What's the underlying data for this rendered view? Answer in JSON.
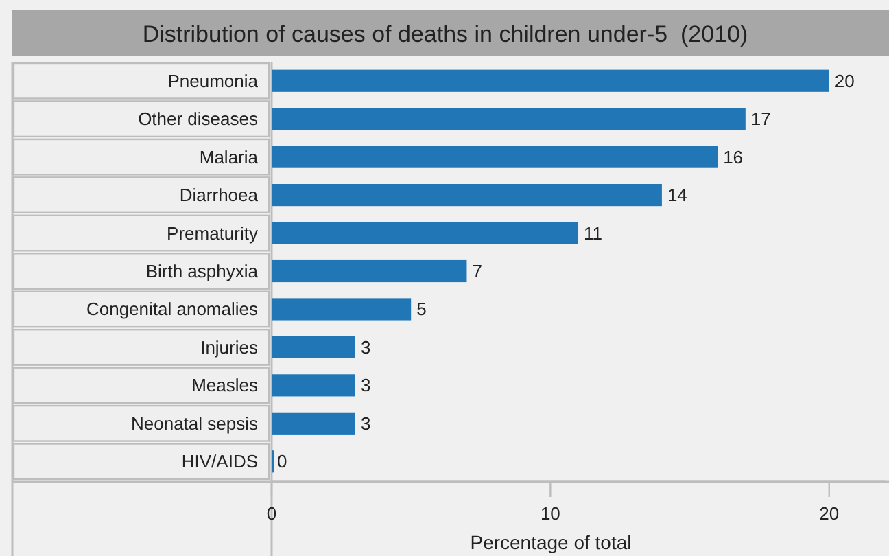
{
  "chart_data": {
    "type": "bar",
    "orientation": "horizontal",
    "title": "Distribution of causes of deaths in children under-5  (2010)",
    "xlabel": "Percentage of total",
    "categories": [
      "Pneumonia",
      "Other diseases",
      "Malaria",
      "Diarrhoea",
      "Prematurity",
      "Birth asphyxia",
      "Congenital anomalies",
      "Injuries",
      "Measles",
      "Neonatal sepsis",
      "HIV/AIDS"
    ],
    "values": [
      20,
      17,
      16,
      14,
      11,
      7,
      5,
      3,
      3,
      3,
      0
    ],
    "color": "#2176b5",
    "data_labels": true,
    "xlim": [
      0,
      22
    ],
    "xticks": [
      0,
      10,
      20
    ],
    "grid": false
  }
}
